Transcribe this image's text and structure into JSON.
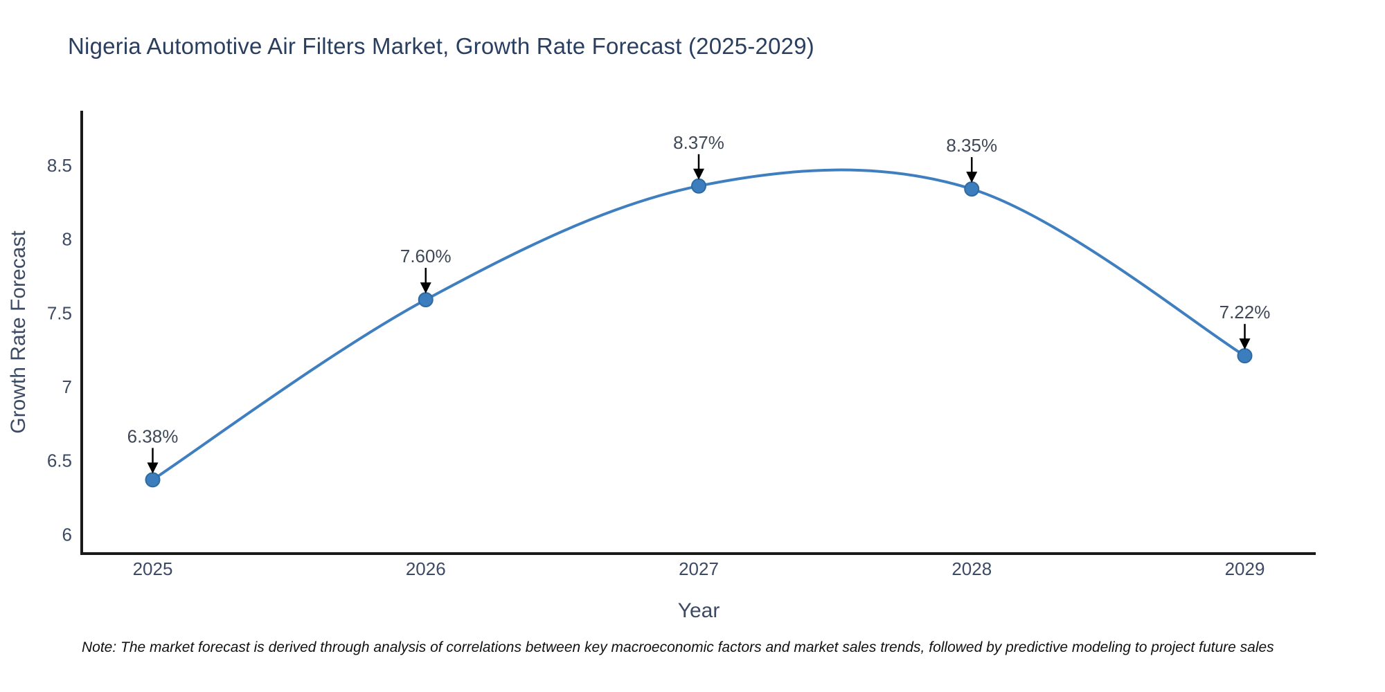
{
  "note": {
    "text": "Note: The market forecast is derived through analysis of correlations between key macroeconomic factors and market sales trends, followed by predictive modeling to project future sales"
  },
  "chart_data": {
    "type": "line",
    "title": "Nigeria Automotive Air Filters Market, Growth Rate Forecast (2025-2029)",
    "xlabel": "Year",
    "ylabel": "Growth Rate Forecast",
    "x": [
      2025,
      2026,
      2027,
      2028,
      2029
    ],
    "values": [
      6.38,
      7.6,
      8.37,
      8.35,
      7.22
    ],
    "point_labels": [
      "6.38%",
      "7.60%",
      "8.37%",
      "8.35%",
      "7.22%"
    ],
    "x_tick_labels": [
      "2025",
      "2026",
      "2027",
      "2028",
      "2029"
    ],
    "yticks": [
      6,
      6.5,
      7,
      7.5,
      8,
      8.5
    ],
    "ytick_labels": [
      "6",
      "6.5",
      "7",
      "7.5",
      "8",
      "8.5"
    ],
    "xlim": [
      2024.74,
      2029.26
    ],
    "ylim": [
      5.88,
      8.88
    ],
    "grid": false,
    "legend": "none",
    "line_shape": "spline",
    "colors": {
      "line": "#3f7fbf",
      "marker_fill": "#3c7ebd",
      "marker_edge": "#2f6aa0",
      "axis": "#1a1a1a",
      "tick_label": "#3d4a63",
      "axis_title": "#3d4a63",
      "annotation_text": "#3f4856",
      "annotation_arrow": "#000000",
      "title": "#2a3f5f",
      "background": "#ffffff"
    }
  }
}
